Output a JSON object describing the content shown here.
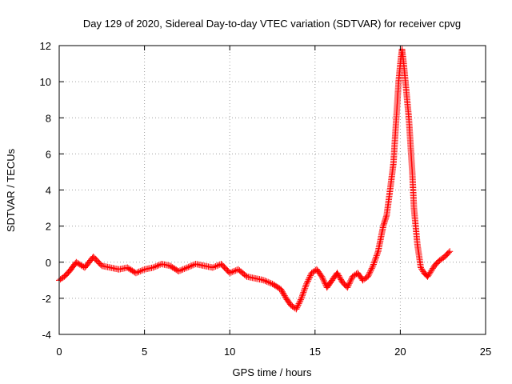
{
  "chart_data": {
    "type": "scatter",
    "title": "Day 129 of 2020, Sidereal Day-to-day VTEC variation (SDTVAR) for receiver cpvg",
    "xlabel": "GPS time / hours",
    "ylabel": "SDTVAR / TECUs",
    "xlim": [
      0,
      25
    ],
    "ylim": [
      -4,
      12
    ],
    "x_ticks": [
      "0",
      "5",
      "10",
      "15",
      "20",
      "25"
    ],
    "y_ticks": [
      "-4",
      "-2",
      "0",
      "2",
      "4",
      "6",
      "8",
      "10",
      "12"
    ],
    "grid": true,
    "marker": "+",
    "series": [
      {
        "name": "SDTVAR",
        "color": "#ff0000",
        "x": [
          0.0,
          0.3,
          0.6,
          1.0,
          1.5,
          2.0,
          2.5,
          3.0,
          3.5,
          4.0,
          4.5,
          5.0,
          5.5,
          6.0,
          6.5,
          7.0,
          7.5,
          8.0,
          8.5,
          9.0,
          9.5,
          10.0,
          10.5,
          11.0,
          11.5,
          12.0,
          12.5,
          13.0,
          13.3,
          13.6,
          13.9,
          14.2,
          14.5,
          14.8,
          15.1,
          15.4,
          15.7,
          16.0,
          16.3,
          16.6,
          16.9,
          17.2,
          17.5,
          17.8,
          18.1,
          18.4,
          18.7,
          19.0,
          19.2,
          19.4,
          19.6,
          19.7,
          19.8,
          19.9,
          20.0,
          20.1,
          20.2,
          20.3,
          20.4,
          20.5,
          20.6,
          20.7,
          20.8,
          21.0,
          21.2,
          21.4,
          21.6,
          21.8,
          22.0,
          22.3,
          22.6,
          22.9
        ],
        "y": [
          -1.0,
          -0.8,
          -0.5,
          0.0,
          -0.3,
          0.3,
          -0.2,
          -0.3,
          -0.4,
          -0.3,
          -0.6,
          -0.4,
          -0.3,
          -0.1,
          -0.2,
          -0.5,
          -0.3,
          -0.1,
          -0.2,
          -0.3,
          -0.1,
          -0.6,
          -0.4,
          -0.8,
          -0.9,
          -1.0,
          -1.2,
          -1.5,
          -2.0,
          -2.4,
          -2.6,
          -2.0,
          -1.2,
          -0.6,
          -0.4,
          -0.8,
          -1.4,
          -1.0,
          -0.6,
          -1.1,
          -1.4,
          -0.8,
          -0.6,
          -1.0,
          -0.8,
          -0.2,
          0.6,
          2.0,
          2.6,
          4.0,
          5.5,
          7.0,
          8.5,
          10.0,
          11.0,
          11.8,
          11.0,
          10.0,
          9.0,
          8.0,
          6.5,
          5.0,
          3.0,
          1.0,
          -0.3,
          -0.6,
          -0.8,
          -0.5,
          -0.2,
          0.1,
          0.3,
          0.6
        ]
      }
    ]
  }
}
